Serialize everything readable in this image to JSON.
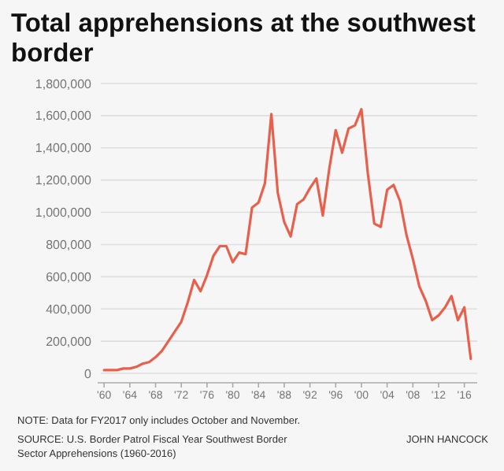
{
  "chart_data": {
    "type": "line",
    "title": "Total apprehensions at the southwest border",
    "x": [
      1960,
      1961,
      1962,
      1963,
      1964,
      1965,
      1966,
      1967,
      1968,
      1969,
      1970,
      1971,
      1972,
      1973,
      1974,
      1975,
      1976,
      1977,
      1978,
      1979,
      1980,
      1981,
      1982,
      1983,
      1984,
      1985,
      1986,
      1987,
      1988,
      1989,
      1990,
      1991,
      1992,
      1993,
      1994,
      1995,
      1996,
      1997,
      1998,
      1999,
      2000,
      2001,
      2002,
      2003,
      2004,
      2005,
      2006,
      2007,
      2008,
      2009,
      2010,
      2011,
      2012,
      2013,
      2014,
      2015,
      2016,
      2017
    ],
    "series": [
      {
        "color": "#e8604c",
        "values": [
          20000,
          20000,
          20000,
          30000,
          30000,
          40000,
          60000,
          70000,
          100000,
          140000,
          200000,
          260000,
          320000,
          440000,
          580000,
          510000,
          610000,
          730000,
          790000,
          790000,
          690000,
          750000,
          740000,
          1030000,
          1060000,
          1180000,
          1610000,
          1120000,
          940000,
          850000,
          1050000,
          1080000,
          1150000,
          1210000,
          980000,
          1270000,
          1510000,
          1370000,
          1520000,
          1540000,
          1640000,
          1240000,
          930000,
          910000,
          1140000,
          1170000,
          1070000,
          860000,
          710000,
          540000,
          450000,
          330000,
          360000,
          410000,
          480000,
          330000,
          410000,
          90000
        ]
      }
    ],
    "xlim": [
      1959,
      2018
    ],
    "xticks": [
      {
        "value": 1960,
        "label": "'60"
      },
      {
        "value": 1964,
        "label": "'64"
      },
      {
        "value": 1968,
        "label": "'68"
      },
      {
        "value": 1972,
        "label": "'72"
      },
      {
        "value": 1976,
        "label": "'76"
      },
      {
        "value": 1980,
        "label": "'80"
      },
      {
        "value": 1984,
        "label": "'84"
      },
      {
        "value": 1988,
        "label": "'88"
      },
      {
        "value": 1992,
        "label": "'92"
      },
      {
        "value": 1996,
        "label": "'96"
      },
      {
        "value": 2000,
        "label": "'00"
      },
      {
        "value": 2004,
        "label": "'04"
      },
      {
        "value": 2008,
        "label": "'08"
      },
      {
        "value": 2012,
        "label": "'12"
      },
      {
        "value": 2016,
        "label": "'16"
      }
    ],
    "ylim": [
      0,
      1800000
    ],
    "yticks": [
      0,
      {
        "value": 200000,
        "label": "200,000"
      },
      {
        "value": 400000,
        "label": "400,000"
      },
      {
        "value": 600000,
        "label": "600,000"
      },
      {
        "value": 800000,
        "label": "800,000"
      },
      {
        "value": 1000000,
        "label": "1,000,000"
      },
      {
        "value": 1200000,
        "label": "1,200,000"
      },
      {
        "value": 1400000,
        "label": "1,400,000"
      },
      {
        "value": 1600000,
        "label": "1,600,000"
      },
      {
        "value": 1800000,
        "label": "1,800,000"
      }
    ],
    "grid": "y",
    "line_style": "solid",
    "marker": "none",
    "annotations": [
      "NOTE: Data for FY2017 only includes October and November.",
      "SOURCE: U.S. Border Patrol Fiscal Year Southwest Border Sector Apprehensions (1960-2016)",
      "JOHN HANCOCK"
    ]
  }
}
